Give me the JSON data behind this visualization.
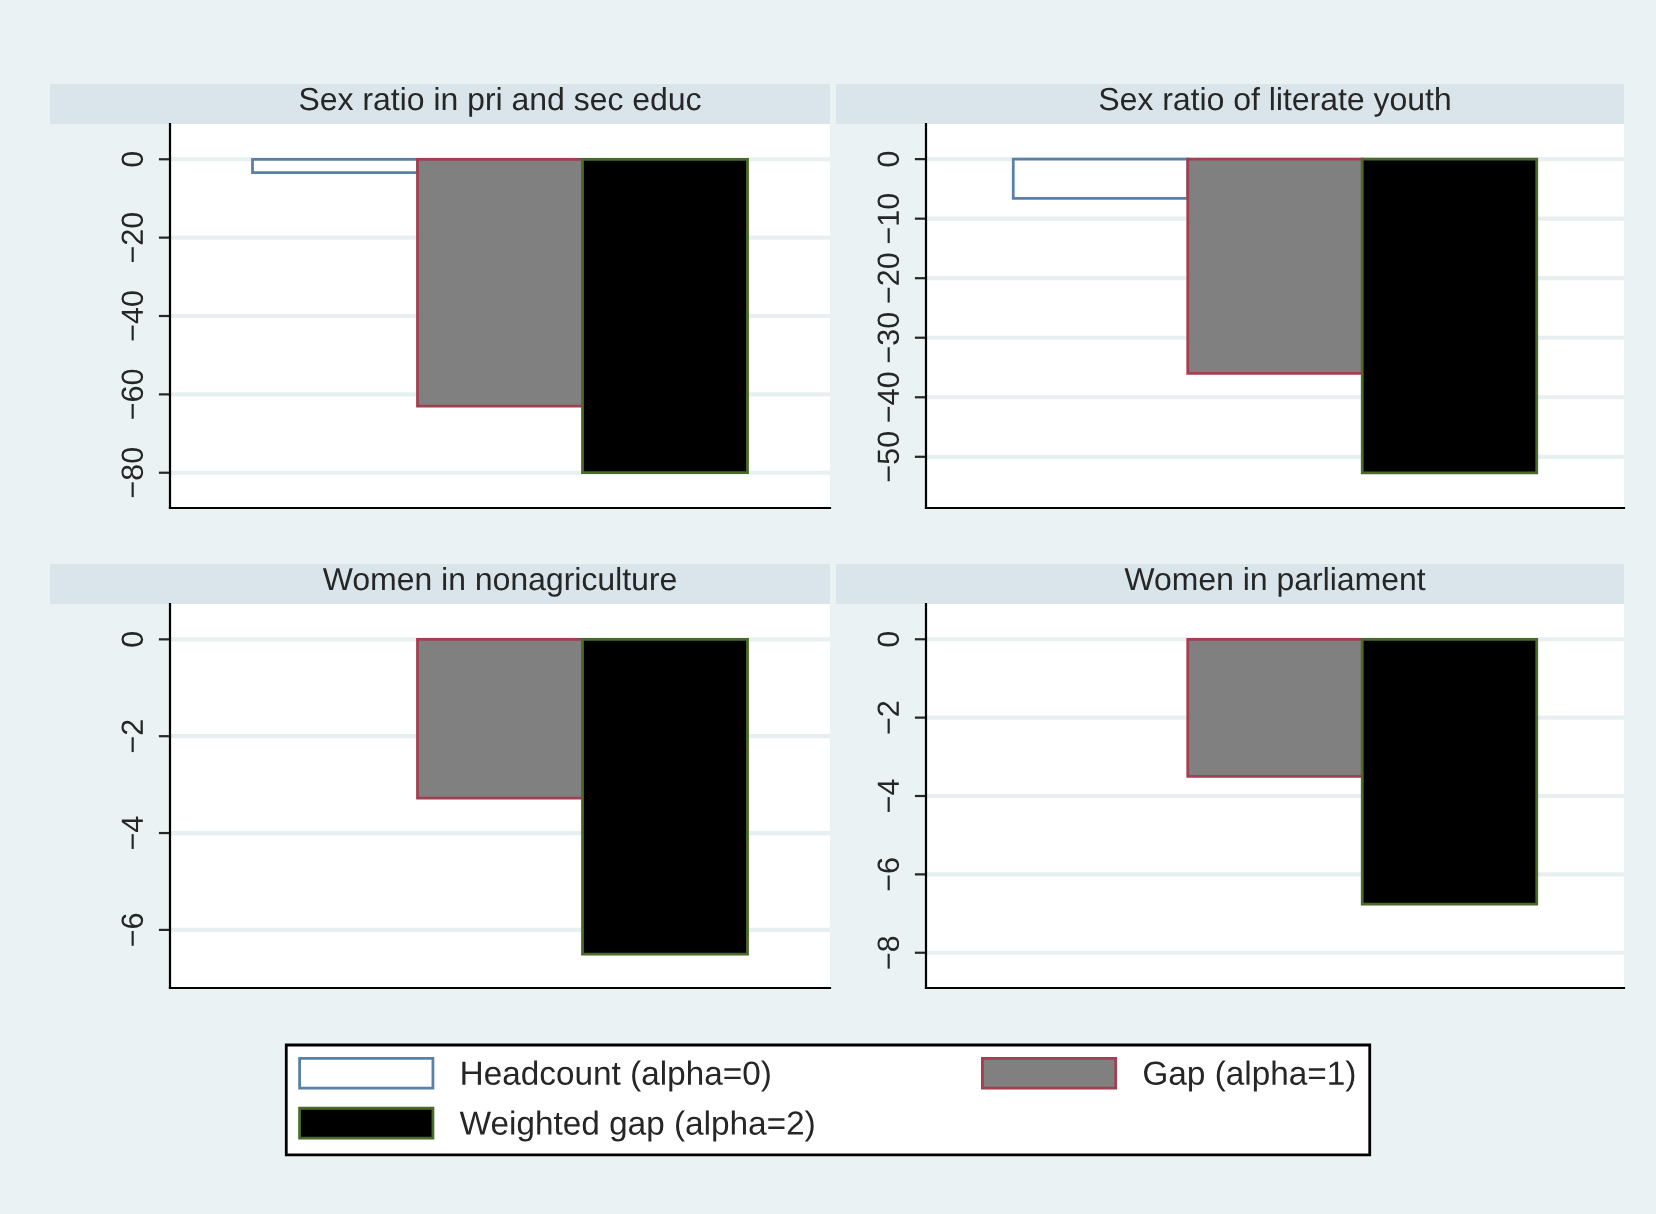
{
  "chart_data": [
    {
      "type": "bar",
      "title": "Sex ratio in pri and sec educ",
      "categories": [
        null
      ],
      "ylim": [
        -89,
        9
      ],
      "yticks": [
        0,
        -20,
        -40,
        -60,
        -80
      ],
      "grid": "y",
      "legend": "bottom",
      "series": [
        {
          "name": "Headcount (alpha=0)",
          "color": "#ffffff",
          "values": [
            -3.4
          ]
        },
        {
          "name": "Gap (alpha=1)",
          "color": "#808080",
          "values": [
            -63
          ]
        },
        {
          "name": "Weighted gap (alpha=2)",
          "color": "#000000",
          "values": [
            -80
          ]
        }
      ]
    },
    {
      "type": "bar",
      "title": "Sex ratio of literate youth",
      "categories": [
        null
      ],
      "ylim": [
        -58.6,
        5.9
      ],
      "yticks": [
        0,
        -10,
        -20,
        -30,
        -40,
        -50
      ],
      "grid": "y",
      "series": [
        {
          "color": "#ffffff",
          "values": [
            -6.6
          ]
        },
        {
          "color": "#808080",
          "values": [
            -36
          ]
        },
        {
          "color": "#000000",
          "values": [
            -52.7
          ]
        }
      ]
    },
    {
      "type": "bar",
      "title": "Women in nonagriculture",
      "categories": [
        null
      ],
      "ylim": [
        -7.2,
        0.73
      ],
      "yticks": [
        0,
        -2,
        -4,
        -6
      ],
      "grid": "y",
      "series": [
        {
          "color": "#ffffff",
          "values": [
            null
          ]
        },
        {
          "color": "#808080",
          "values": [
            -3.28
          ]
        },
        {
          "color": "#000000",
          "values": [
            -6.5
          ]
        }
      ]
    },
    {
      "type": "bar",
      "title": "Women in parliament",
      "categories": [
        null
      ],
      "ylim": [
        -8.9,
        0.9
      ],
      "yticks": [
        0,
        -2,
        -4,
        -6,
        -8
      ],
      "grid": "y",
      "series": [
        {
          "color": "#ffffff",
          "values": [
            null
          ]
        },
        {
          "color": "#808080",
          "values": [
            -3.5
          ]
        },
        {
          "color": "#000000",
          "values": [
            -6.76
          ]
        }
      ]
    }
  ]
}
